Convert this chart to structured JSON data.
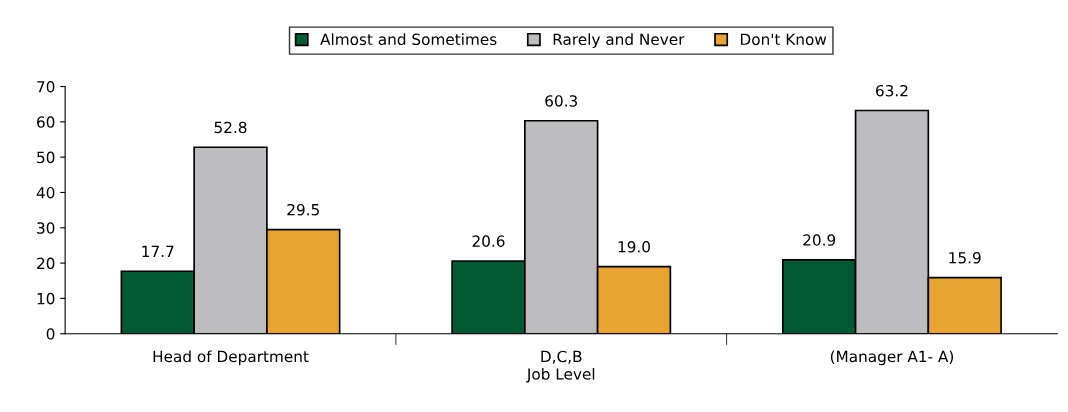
{
  "chart_data": {
    "type": "bar",
    "xlabel": "Job Level",
    "categories": [
      "Head of Department",
      "D,C,B",
      "(Manager A1- A)"
    ],
    "series": [
      {
        "name": "Almost and Sometimes",
        "color": "#005a36",
        "values": [
          17.7,
          20.6,
          20.9
        ],
        "value_labels": [
          "17.7",
          "20.6",
          "20.9"
        ]
      },
      {
        "name": "Rarely and Never",
        "color": "#bdbdc0",
        "values": [
          52.8,
          60.3,
          63.2
        ],
        "value_labels": [
          "52.8",
          "60.3",
          "63.2"
        ]
      },
      {
        "name": "Don't Know",
        "color": "#e8a331",
        "values": [
          29.5,
          19.0,
          15.9
        ],
        "value_labels": [
          "29.5",
          "19.0",
          "15.9"
        ]
      }
    ],
    "ylim": [
      0,
      70
    ],
    "yticks": [
      0,
      10,
      20,
      30,
      40,
      50,
      60,
      70
    ],
    "grid": false,
    "legend": "top"
  }
}
